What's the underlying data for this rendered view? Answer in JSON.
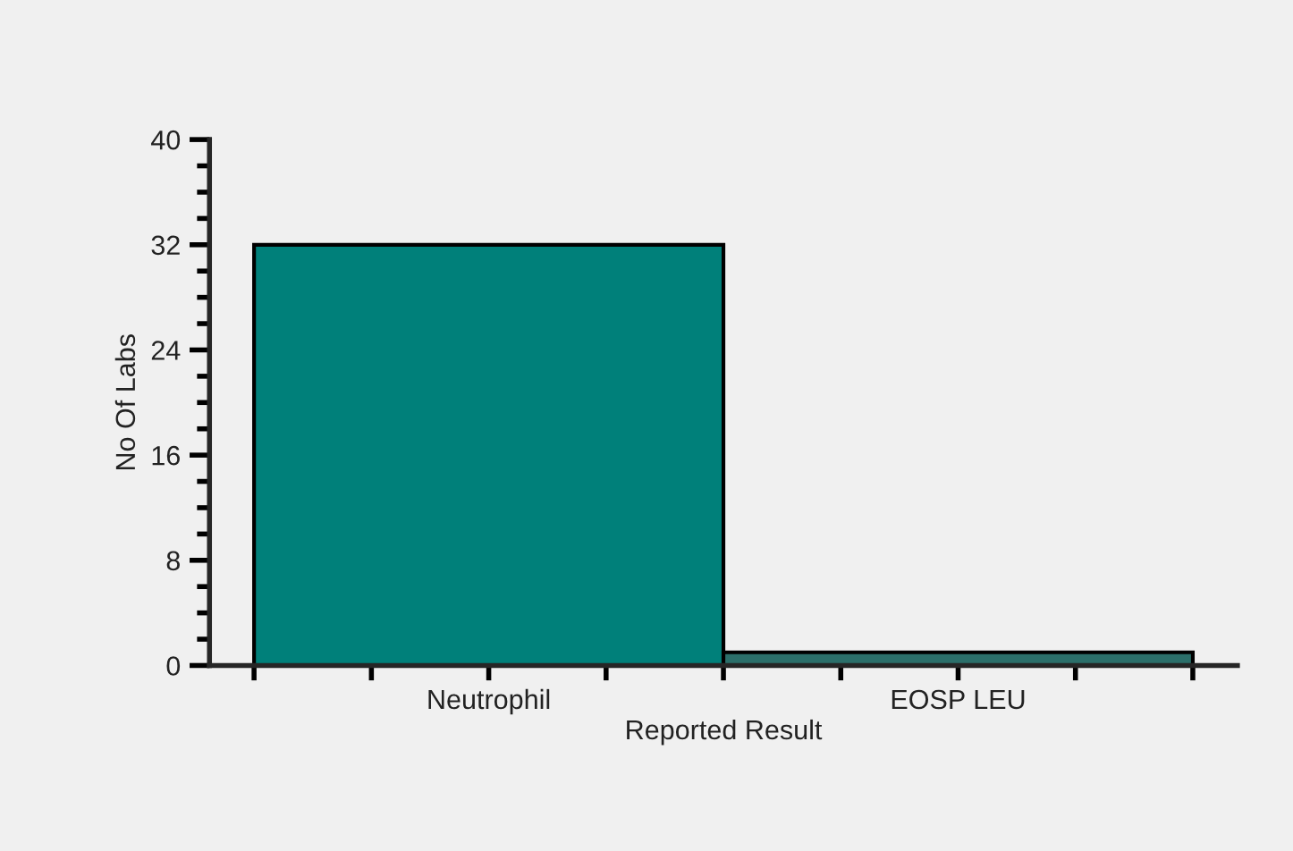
{
  "chart_data": {
    "type": "bar",
    "xlabel": "Reported Result",
    "ylabel": "No Of Labs",
    "categories": [
      "Neutrophil",
      "EOSP LEU"
    ],
    "values": [
      32,
      1
    ],
    "colors": [
      "#00807a",
      "#2b6f6a"
    ],
    "ylim": [
      0,
      40
    ],
    "yticks": [
      0,
      8,
      16,
      24,
      32,
      40
    ]
  }
}
